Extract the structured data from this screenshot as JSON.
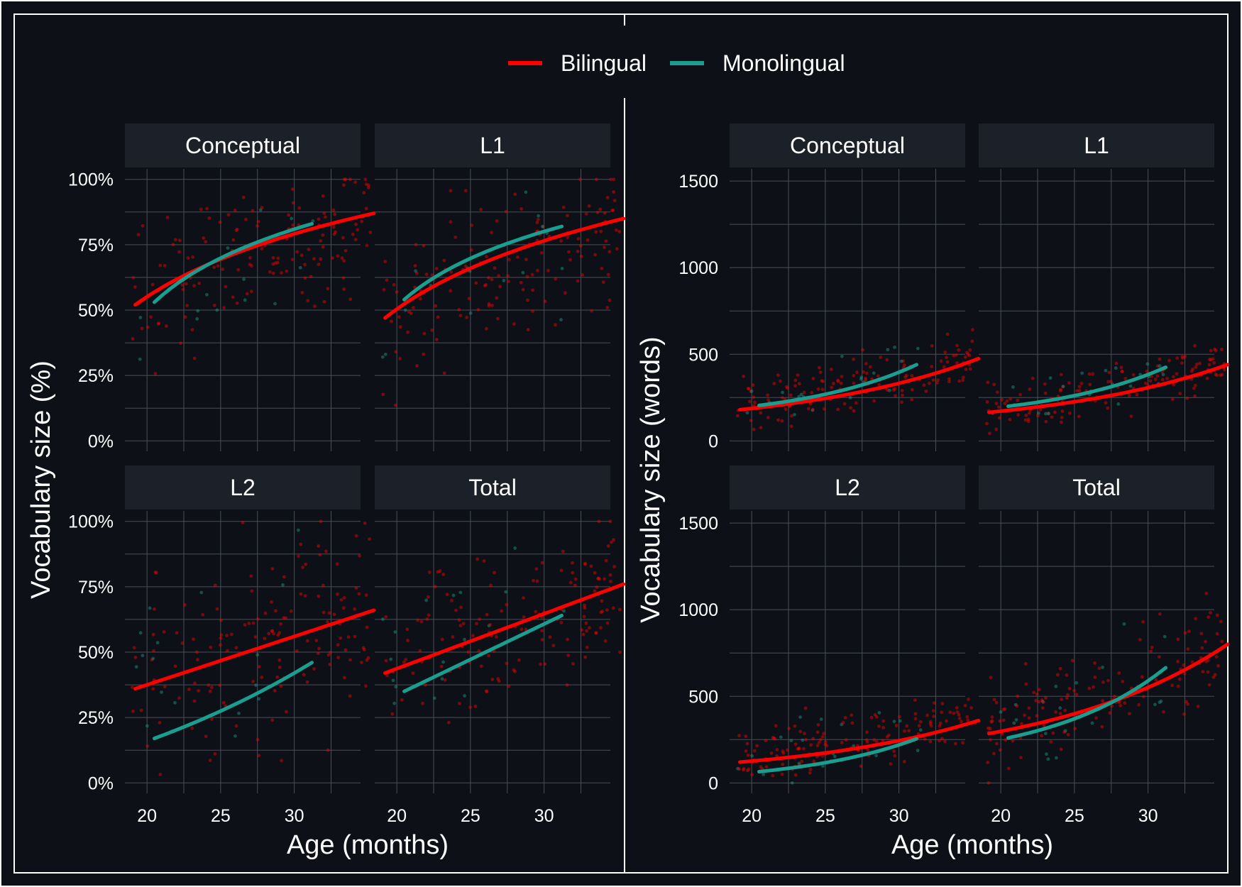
{
  "colors": {
    "background": "#0d1117",
    "strip": "#1c2129",
    "grid": "#4a4f56",
    "text": "#ffffff",
    "bilingual": "#ff0000",
    "monolingual": "#1a9e8f"
  },
  "legend": {
    "placement": "top-center",
    "items": [
      {
        "label": "Bilingual",
        "color": "#ff0000"
      },
      {
        "label": "Monolingual",
        "color": "#1a9e8f"
      }
    ]
  },
  "chart_data": [
    {
      "type": "scatter",
      "ylabel": "Vocabulary size (%)",
      "xlabel": "Age (months)",
      "x_ticks": [
        20,
        25,
        30
      ],
      "y_ticks": [
        "0%",
        "25%",
        "50%",
        "75%",
        "100%"
      ],
      "y_tick_values": [
        0,
        25,
        50,
        75,
        100
      ],
      "xlim": [
        18.5,
        34.5
      ],
      "ylim": [
        -4,
        104
      ],
      "grid": true,
      "facets": [
        {
          "title": "Conceptual",
          "series": [
            {
              "name": "Bilingual",
              "x": [
                19.2,
                35.4
              ],
              "y": [
                52,
                87
              ],
              "curve": "log"
            },
            {
              "name": "Monolingual",
              "x": [
                20.5,
                31.2
              ],
              "y": [
                53,
                83
              ],
              "curve": "log"
            }
          ],
          "points": {
            "center_start": 52,
            "center_end": 87,
            "spread": 22
          }
        },
        {
          "title": "L1",
          "series": [
            {
              "name": "Bilingual",
              "x": [
                19.2,
                35.4
              ],
              "y": [
                47,
                85
              ],
              "curve": "log"
            },
            {
              "name": "Monolingual",
              "x": [
                20.5,
                31.2
              ],
              "y": [
                54,
                82
              ],
              "curve": "log"
            }
          ],
          "points": {
            "center_start": 47,
            "center_end": 85,
            "spread": 24
          }
        },
        {
          "title": "L2",
          "series": [
            {
              "name": "Bilingual",
              "x": [
                19.2,
                35.4
              ],
              "y": [
                36,
                66
              ],
              "curve": "linear"
            },
            {
              "name": "Monolingual",
              "x": [
                20.5,
                31.2
              ],
              "y": [
                17,
                46
              ],
              "curve": "slight"
            }
          ],
          "points": {
            "center_start": 36,
            "center_end": 66,
            "spread": 32
          }
        },
        {
          "title": "Total",
          "series": [
            {
              "name": "Bilingual",
              "x": [
                19.2,
                35.4
              ],
              "y": [
                42,
                76
              ],
              "curve": "linear"
            },
            {
              "name": "Monolingual",
              "x": [
                20.5,
                31.2
              ],
              "y": [
                35,
                64
              ],
              "curve": "linear"
            }
          ],
          "points": {
            "center_start": 42,
            "center_end": 76,
            "spread": 24
          }
        }
      ]
    },
    {
      "type": "scatter",
      "ylabel": "Vocabulary size (words)",
      "xlabel": "Age (months)",
      "x_ticks": [
        20,
        25,
        30
      ],
      "y_ticks": [
        "0",
        "500",
        "1000",
        "1500"
      ],
      "y_tick_values": [
        0,
        500,
        1000,
        1500
      ],
      "xlim": [
        18.5,
        34.5
      ],
      "ylim": [
        -60,
        1570
      ],
      "grid": true,
      "facets": [
        {
          "title": "Conceptual",
          "series": [
            {
              "name": "Bilingual",
              "x": [
                19.2,
                35.4
              ],
              "y": [
                180,
                475
              ],
              "curve": "exp"
            },
            {
              "name": "Monolingual",
              "x": [
                20.5,
                31.2
              ],
              "y": [
                205,
                440
              ],
              "curve": "exp"
            }
          ],
          "points": {
            "center_start": 190,
            "center_end": 470,
            "spread": 120
          }
        },
        {
          "title": "L1",
          "series": [
            {
              "name": "Bilingual",
              "x": [
                19.2,
                35.4
              ],
              "y": [
                165,
                440
              ],
              "curve": "exp"
            },
            {
              "name": "Monolingual",
              "x": [
                20.5,
                31.2
              ],
              "y": [
                200,
                425
              ],
              "curve": "exp"
            }
          ],
          "points": {
            "center_start": 175,
            "center_end": 445,
            "spread": 130
          }
        },
        {
          "title": "L2",
          "series": [
            {
              "name": "Bilingual",
              "x": [
                19.2,
                35.4
              ],
              "y": [
                120,
                360
              ],
              "curve": "exp"
            },
            {
              "name": "Monolingual",
              "x": [
                20.5,
                31.2
              ],
              "y": [
                65,
                255
              ],
              "curve": "exp"
            }
          ],
          "points": {
            "center_start": 130,
            "center_end": 370,
            "spread": 140
          }
        },
        {
          "title": "Total",
          "series": [
            {
              "name": "Bilingual",
              "x": [
                19.2,
                35.4
              ],
              "y": [
                285,
                800
              ],
              "curve": "exp"
            },
            {
              "name": "Monolingual",
              "x": [
                20.5,
                31.2
              ],
              "y": [
                260,
                665
              ],
              "curve": "exp"
            }
          ],
          "points": {
            "center_start": 300,
            "center_end": 780,
            "spread": 230
          }
        }
      ]
    }
  ]
}
